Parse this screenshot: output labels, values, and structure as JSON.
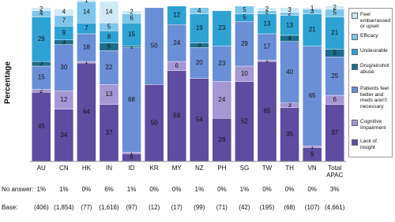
{
  "chart_data": {
    "type": "stacked_bar",
    "y_label": "Percentage",
    "categories": [
      "AU",
      "CN",
      "HK",
      "IN",
      "ID",
      "KR",
      "MY",
      "NZ",
      "PH",
      "SG",
      "TW",
      "TH",
      "VN",
      "Total APAC"
    ],
    "ylim": [
      0,
      105
    ],
    "legend": "right",
    "series": [
      {
        "name": "Lack of insight",
        "color": "#5d4c9f",
        "values": [
          45,
          34,
          64,
          37,
          5,
          50,
          59,
          54,
          28,
          52,
          65,
          35,
          9,
          37
        ]
      },
      {
        "name": "Cognitive Impairment",
        "color": "#a597d3",
        "values": [
          2,
          12,
          1,
          13,
          1,
          null,
          6,
          null,
          24,
          10,
          1,
          3,
          1,
          6
        ]
      },
      {
        "name": "Patients feel better and meds aren't necessary",
        "color": "#6b8fd6",
        "values": [
          15,
          30,
          18,
          22,
          68,
          50,
          24,
          20,
          23,
          29,
          17,
          40,
          65,
          25
        ]
      },
      {
        "name": "Drug/alcohol abuse",
        "color": "#1c6e8c",
        "values": [
          3,
          3,
          null,
          5,
          1,
          null,
          null,
          3,
          null,
          null,
          null,
          4,
          null,
          5
        ]
      },
      {
        "name": "Undesirable",
        "color": "#2ea2d3",
        "values": [
          29,
          9,
          7,
          8,
          15,
          null,
          12,
          19,
          23,
          5,
          13,
          13,
          21,
          21
        ]
      },
      {
        "name": "Efficacy",
        "color": "#7fc7ea",
        "values": [
          4,
          7,
          14,
          5,
          6,
          null,
          null,
          4,
          null,
          5,
          2,
          2,
          3,
          5
        ]
      },
      {
        "name": "Feel embarrassed or upset",
        "color": "#cfe9f6",
        "values": [
          2,
          4,
          1,
          14,
          2,
          null,
          null,
          null,
          null,
          null,
          2,
          3,
          1,
          2
        ]
      }
    ],
    "no_answer": {
      "label": "No answer:",
      "values": [
        "1%",
        "1%",
        "0%",
        "6%",
        "1%",
        "0%",
        "0%",
        "1%",
        "0%",
        "1%",
        "0%",
        "0%",
        "0%",
        "3%"
      ]
    },
    "base": {
      "label": "Base:",
      "values": [
        "(406)",
        "(1,854)",
        "(77)",
        "(1,616)",
        "(97)",
        "(12)",
        "(17)",
        "(99)",
        "(71)",
        "(42)",
        "(195)",
        "(68)",
        "(107)",
        "(4,661)"
      ]
    }
  }
}
